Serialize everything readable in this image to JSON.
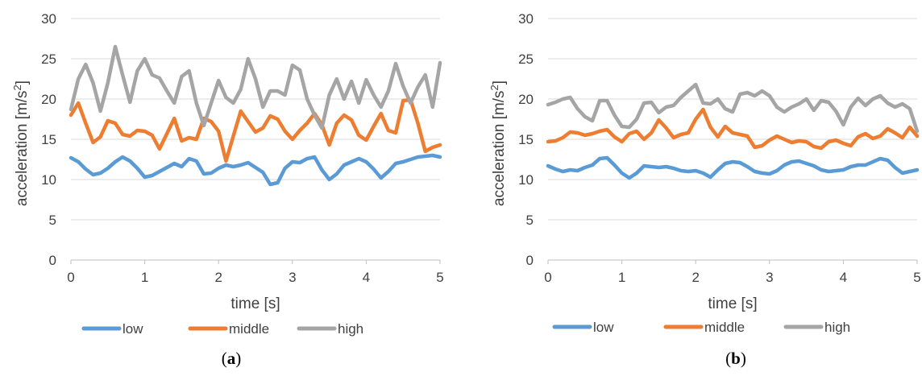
{
  "chart_data": [
    {
      "type": "line",
      "caption_prefix": "(",
      "caption_letter": "a",
      "caption_suffix": ")",
      "xlabel": "time [s]",
      "ylabel": "acceleration [m/s²]",
      "ylabel_main": "acceleration [m/s",
      "ylabel_sup": "2",
      "ylabel_end": "]",
      "xlim": [
        0,
        5
      ],
      "ylim": [
        0,
        30
      ],
      "xticks": [
        0,
        1,
        2,
        3,
        4,
        5
      ],
      "yticks": [
        0,
        5,
        10,
        15,
        20,
        25,
        30
      ],
      "grid": "horizontal",
      "legend_position": "bottom",
      "series": [
        {
          "name": "low",
          "color": "#5B9BD5",
          "x": [
            0,
            0.1,
            0.2,
            0.3,
            0.4,
            0.5,
            0.6,
            0.7,
            0.8,
            0.9,
            1.0,
            1.1,
            1.2,
            1.3,
            1.4,
            1.5,
            1.6,
            1.7,
            1.8,
            1.9,
            2.0,
            2.1,
            2.2,
            2.3,
            2.4,
            2.5,
            2.6,
            2.7,
            2.8,
            2.9,
            3.0,
            3.1,
            3.2,
            3.3,
            3.4,
            3.5,
            3.6,
            3.7,
            3.8,
            3.9,
            4.0,
            4.1,
            4.2,
            4.3,
            4.4,
            4.5,
            4.6,
            4.7,
            4.8,
            4.9,
            5.0
          ],
          "y": [
            12.7,
            12.2,
            11.3,
            10.6,
            10.8,
            11.4,
            12.2,
            12.8,
            12.3,
            11.4,
            10.3,
            10.5,
            11.0,
            11.5,
            12.0,
            11.6,
            12.6,
            12.3,
            10.7,
            10.8,
            11.4,
            11.8,
            11.6,
            11.8,
            12.1,
            11.5,
            10.9,
            9.4,
            9.6,
            11.4,
            12.2,
            12.1,
            12.6,
            12.8,
            11.2,
            10.0,
            10.7,
            11.8,
            12.2,
            12.6,
            12.2,
            11.3,
            10.2,
            11.0,
            12.0,
            12.2,
            12.5,
            12.8,
            12.9,
            13.0,
            12.8
          ]
        },
        {
          "name": "middle",
          "color": "#ED7D31",
          "x": [
            0,
            0.1,
            0.2,
            0.3,
            0.4,
            0.5,
            0.6,
            0.7,
            0.8,
            0.9,
            1.0,
            1.1,
            1.2,
            1.3,
            1.4,
            1.5,
            1.6,
            1.7,
            1.8,
            1.9,
            2.0,
            2.1,
            2.2,
            2.3,
            2.4,
            2.5,
            2.6,
            2.7,
            2.8,
            2.9,
            3.0,
            3.1,
            3.2,
            3.3,
            3.4,
            3.5,
            3.6,
            3.7,
            3.8,
            3.9,
            4.0,
            4.1,
            4.2,
            4.3,
            4.4,
            4.5,
            4.6,
            4.7,
            4.8,
            4.9,
            5.0
          ],
          "y": [
            18.0,
            19.5,
            17.0,
            14.6,
            15.3,
            17.3,
            17.0,
            15.6,
            15.4,
            16.1,
            16.0,
            15.5,
            13.8,
            15.7,
            17.6,
            14.8,
            15.2,
            15.0,
            17.6,
            17.2,
            16.0,
            12.3,
            15.4,
            18.5,
            17.2,
            15.9,
            16.4,
            17.9,
            17.5,
            16.0,
            15.0,
            16.1,
            17.0,
            18.2,
            16.8,
            14.3,
            17.0,
            18.0,
            17.4,
            15.5,
            14.9,
            16.6,
            18.2,
            16.1,
            15.8,
            19.8,
            19.9,
            17.0,
            13.5,
            14.0,
            14.3
          ]
        },
        {
          "name": "high",
          "color": "#A5A5A5",
          "x": [
            0,
            0.1,
            0.2,
            0.3,
            0.4,
            0.5,
            0.6,
            0.7,
            0.8,
            0.9,
            1.0,
            1.1,
            1.2,
            1.3,
            1.4,
            1.5,
            1.6,
            1.7,
            1.8,
            1.9,
            2.0,
            2.1,
            2.2,
            2.3,
            2.4,
            2.5,
            2.6,
            2.7,
            2.8,
            2.9,
            3.0,
            3.1,
            3.2,
            3.3,
            3.4,
            3.5,
            3.6,
            3.7,
            3.8,
            3.9,
            4.0,
            4.1,
            4.2,
            4.3,
            4.4,
            4.5,
            4.6,
            4.7,
            4.8,
            4.9,
            5.0
          ],
          "y": [
            18.7,
            22.5,
            24.3,
            22.0,
            18.5,
            22.0,
            26.5,
            23.0,
            19.6,
            23.5,
            25.0,
            23.0,
            22.6,
            21.0,
            19.5,
            22.8,
            23.5,
            19.5,
            16.7,
            19.5,
            22.3,
            20.2,
            19.5,
            21.2,
            25.0,
            22.5,
            19.0,
            21.0,
            21.0,
            20.5,
            24.2,
            23.6,
            20.0,
            18.0,
            16.4,
            20.5,
            22.5,
            20.0,
            22.2,
            19.5,
            22.4,
            20.5,
            19.0,
            21.0,
            24.4,
            21.6,
            19.5,
            21.5,
            23.0,
            19.0,
            24.5
          ]
        }
      ]
    },
    {
      "type": "line",
      "caption_prefix": "(",
      "caption_letter": "b",
      "caption_suffix": ")",
      "xlabel": "time [s]",
      "ylabel": "acceleration [m/s²]",
      "ylabel_main": "acceleration [m/s",
      "ylabel_sup": "2",
      "ylabel_end": "]",
      "xlim": [
        0,
        5
      ],
      "ylim": [
        0,
        30
      ],
      "xticks": [
        0,
        1,
        2,
        3,
        4,
        5
      ],
      "yticks": [
        0,
        5,
        10,
        15,
        20,
        25,
        30
      ],
      "grid": "horizontal",
      "legend_position": "bottom",
      "series": [
        {
          "name": "low",
          "color": "#5B9BD5",
          "x": [
            0,
            0.1,
            0.2,
            0.3,
            0.4,
            0.5,
            0.6,
            0.7,
            0.8,
            0.9,
            1.0,
            1.1,
            1.2,
            1.3,
            1.4,
            1.5,
            1.6,
            1.7,
            1.8,
            1.9,
            2.0,
            2.1,
            2.2,
            2.3,
            2.4,
            2.5,
            2.6,
            2.7,
            2.8,
            2.9,
            3.0,
            3.1,
            3.2,
            3.3,
            3.4,
            3.5,
            3.6,
            3.7,
            3.8,
            3.9,
            4.0,
            4.1,
            4.2,
            4.3,
            4.4,
            4.5,
            4.6,
            4.7,
            4.8,
            4.9,
            5.0
          ],
          "y": [
            11.7,
            11.3,
            11.0,
            11.2,
            11.1,
            11.5,
            11.8,
            12.6,
            12.7,
            11.8,
            10.8,
            10.2,
            10.8,
            11.7,
            11.6,
            11.5,
            11.6,
            11.4,
            11.1,
            11.0,
            11.1,
            10.8,
            10.3,
            11.2,
            12.0,
            12.2,
            12.1,
            11.6,
            11.0,
            10.8,
            10.7,
            11.1,
            11.8,
            12.2,
            12.3,
            12.0,
            11.7,
            11.2,
            11.0,
            11.1,
            11.2,
            11.6,
            11.8,
            11.8,
            12.2,
            12.6,
            12.4,
            11.5,
            10.8,
            11.0,
            11.2
          ]
        },
        {
          "name": "middle",
          "color": "#ED7D31",
          "x": [
            0,
            0.1,
            0.2,
            0.3,
            0.4,
            0.5,
            0.6,
            0.7,
            0.8,
            0.9,
            1.0,
            1.1,
            1.2,
            1.3,
            1.4,
            1.5,
            1.6,
            1.7,
            1.8,
            1.9,
            2.0,
            2.1,
            2.2,
            2.3,
            2.4,
            2.5,
            2.6,
            2.7,
            2.8,
            2.9,
            3.0,
            3.1,
            3.2,
            3.3,
            3.4,
            3.5,
            3.6,
            3.7,
            3.8,
            3.9,
            4.0,
            4.1,
            4.2,
            4.3,
            4.4,
            4.5,
            4.6,
            4.7,
            4.8,
            4.9,
            5.0
          ],
          "y": [
            14.7,
            14.8,
            15.2,
            15.9,
            15.8,
            15.5,
            15.7,
            16.0,
            16.2,
            15.3,
            14.7,
            15.7,
            16.0,
            15.0,
            15.8,
            17.4,
            16.4,
            15.2,
            15.6,
            15.8,
            17.5,
            18.7,
            16.5,
            15.3,
            16.6,
            15.8,
            15.6,
            15.4,
            14.0,
            14.2,
            14.9,
            15.4,
            15.0,
            14.6,
            14.8,
            14.7,
            14.1,
            13.9,
            14.7,
            14.9,
            14.5,
            14.2,
            15.3,
            15.7,
            15.1,
            15.4,
            16.3,
            15.8,
            15.2,
            16.5,
            15.4
          ]
        },
        {
          "name": "high",
          "color": "#A5A5A5",
          "x": [
            0,
            0.1,
            0.2,
            0.3,
            0.4,
            0.5,
            0.6,
            0.7,
            0.8,
            0.9,
            1.0,
            1.1,
            1.2,
            1.3,
            1.4,
            1.5,
            1.6,
            1.7,
            1.8,
            1.9,
            2.0,
            2.1,
            2.2,
            2.3,
            2.4,
            2.5,
            2.6,
            2.7,
            2.8,
            2.9,
            3.0,
            3.1,
            3.2,
            3.3,
            3.4,
            3.5,
            3.6,
            3.7,
            3.8,
            3.9,
            4.0,
            4.1,
            4.2,
            4.3,
            4.4,
            4.5,
            4.6,
            4.7,
            4.8,
            4.9,
            5.0
          ],
          "y": [
            19.3,
            19.6,
            20.0,
            20.2,
            18.8,
            17.8,
            17.3,
            19.8,
            19.8,
            18.0,
            16.6,
            16.5,
            17.5,
            19.5,
            19.6,
            18.3,
            19.0,
            19.2,
            20.2,
            21.0,
            21.8,
            19.5,
            19.4,
            20.0,
            18.8,
            18.4,
            20.6,
            20.8,
            20.4,
            21.0,
            20.4,
            19.0,
            18.4,
            19.0,
            19.4,
            20.0,
            18.6,
            19.8,
            19.6,
            18.5,
            16.8,
            19.0,
            20.1,
            19.2,
            20.0,
            20.4,
            19.5,
            19.0,
            19.4,
            18.8,
            16.0
          ]
        }
      ]
    }
  ]
}
